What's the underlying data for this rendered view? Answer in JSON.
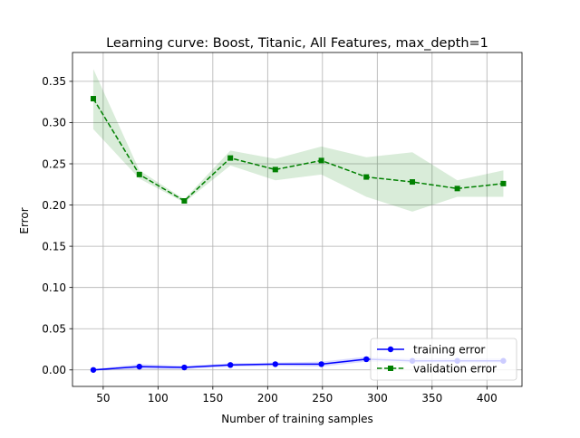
{
  "chart_data": {
    "type": "line",
    "title": "Learning curve: Boost, Titanic, All Features, max_depth=1",
    "xlabel": "Number of training samples",
    "ylabel": "Error",
    "xlim": [
      22,
      432
    ],
    "ylim": [
      -0.02,
      0.385
    ],
    "xticks": [
      50,
      100,
      150,
      200,
      250,
      300,
      350,
      400
    ],
    "xtick_labels": [
      "50",
      "100",
      "150",
      "200",
      "250",
      "300",
      "350",
      "400"
    ],
    "yticks": [
      0.0,
      0.05,
      0.1,
      0.15,
      0.2,
      0.25,
      0.3,
      0.35
    ],
    "ytick_labels": [
      "0.00",
      "0.05",
      "0.10",
      "0.15",
      "0.20",
      "0.25",
      "0.30",
      "0.35"
    ],
    "grid": true,
    "legend_position": "lower-right",
    "x": [
      41,
      83,
      124,
      166,
      207,
      249,
      290,
      332,
      373,
      415
    ],
    "series": [
      {
        "name": "training error",
        "color": "#0000ff",
        "band_color": "#0000ff",
        "marker": "circle",
        "linestyle": "solid",
        "values": [
          0.0,
          0.004,
          0.003,
          0.006,
          0.007,
          0.007,
          0.013,
          0.011,
          0.011,
          0.011
        ],
        "lower": [
          -0.001,
          0.001,
          0.001,
          0.004,
          0.005,
          0.004,
          0.01,
          0.008,
          0.008,
          0.008
        ],
        "upper": [
          0.001,
          0.007,
          0.005,
          0.008,
          0.009,
          0.01,
          0.016,
          0.014,
          0.014,
          0.014
        ]
      },
      {
        "name": "validation error",
        "color": "#008000",
        "band_color": "#008000",
        "marker": "square",
        "linestyle": "dashed",
        "values": [
          0.329,
          0.237,
          0.205,
          0.257,
          0.243,
          0.254,
          0.234,
          0.228,
          0.22,
          0.226
        ],
        "lower": [
          0.292,
          0.232,
          0.203,
          0.248,
          0.23,
          0.237,
          0.21,
          0.192,
          0.21,
          0.21
        ],
        "upper": [
          0.365,
          0.242,
          0.207,
          0.266,
          0.256,
          0.271,
          0.258,
          0.264,
          0.23,
          0.242
        ]
      }
    ]
  }
}
